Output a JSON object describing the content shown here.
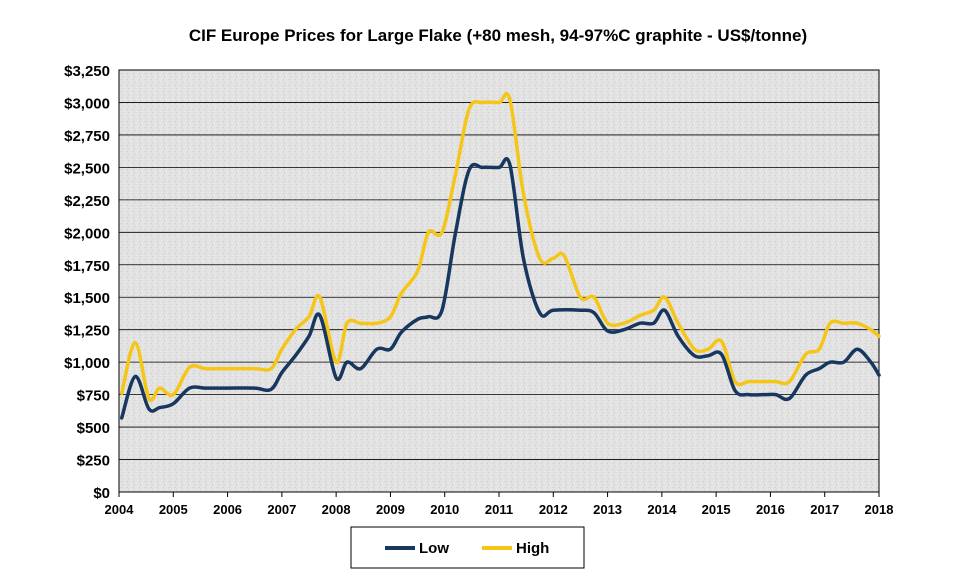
{
  "chart_data": {
    "type": "line",
    "title": "CIF Europe Prices for Large Flake (+80 mesh, 94-97%C graphite - US$/tonne)",
    "xlabel": "",
    "ylabel": "",
    "xlim": [
      2004,
      2018
    ],
    "ylim": [
      0,
      3250
    ],
    "y_ticks": [
      0,
      250,
      500,
      750,
      1000,
      1250,
      1500,
      1750,
      2000,
      2250,
      2500,
      2750,
      3000,
      3250
    ],
    "y_tick_labels": [
      "$0",
      "$250",
      "$500",
      "$750",
      "$1,000",
      "$1,250",
      "$1,500",
      "$1,750",
      "$2,000",
      "$2,250",
      "$2,500",
      "$2,750",
      "$3,000",
      "$3,250"
    ],
    "x_tick_labels": [
      "2004",
      "2005",
      "2006",
      "2007",
      "2008",
      "2009",
      "2010",
      "2011",
      "2012",
      "2013",
      "2014",
      "2015",
      "2016",
      "2017",
      "2018"
    ],
    "grid": true,
    "legend_position": "bottom",
    "series": [
      {
        "name": "Low",
        "color": "#17375e",
        "points": [
          [
            2004.05,
            570
          ],
          [
            2004.3,
            890
          ],
          [
            2004.55,
            640
          ],
          [
            2004.75,
            650
          ],
          [
            2005.0,
            680
          ],
          [
            2005.3,
            800
          ],
          [
            2005.6,
            800
          ],
          [
            2006.0,
            800
          ],
          [
            2006.5,
            800
          ],
          [
            2006.8,
            790
          ],
          [
            2007.0,
            920
          ],
          [
            2007.25,
            1050
          ],
          [
            2007.5,
            1200
          ],
          [
            2007.7,
            1360
          ],
          [
            2008.0,
            880
          ],
          [
            2008.2,
            1000
          ],
          [
            2008.45,
            950
          ],
          [
            2008.75,
            1100
          ],
          [
            2009.0,
            1100
          ],
          [
            2009.2,
            1230
          ],
          [
            2009.5,
            1330
          ],
          [
            2009.7,
            1350
          ],
          [
            2009.95,
            1400
          ],
          [
            2010.2,
            2000
          ],
          [
            2010.45,
            2480
          ],
          [
            2010.7,
            2500
          ],
          [
            2011.0,
            2500
          ],
          [
            2011.2,
            2520
          ],
          [
            2011.45,
            1800
          ],
          [
            2011.75,
            1380
          ],
          [
            2012.0,
            1400
          ],
          [
            2012.5,
            1400
          ],
          [
            2012.75,
            1380
          ],
          [
            2013.0,
            1240
          ],
          [
            2013.3,
            1250
          ],
          [
            2013.6,
            1300
          ],
          [
            2013.85,
            1300
          ],
          [
            2014.05,
            1400
          ],
          [
            2014.3,
            1200
          ],
          [
            2014.6,
            1050
          ],
          [
            2014.85,
            1050
          ],
          [
            2015.1,
            1060
          ],
          [
            2015.35,
            780
          ],
          [
            2015.6,
            750
          ],
          [
            2015.9,
            750
          ],
          [
            2016.1,
            750
          ],
          [
            2016.35,
            720
          ],
          [
            2016.65,
            900
          ],
          [
            2016.9,
            950
          ],
          [
            2017.1,
            1000
          ],
          [
            2017.35,
            1000
          ],
          [
            2017.6,
            1100
          ],
          [
            2017.85,
            1000
          ],
          [
            2018.0,
            900
          ]
        ]
      },
      {
        "name": "High",
        "color": "#f5c518",
        "points": [
          [
            2004.05,
            760
          ],
          [
            2004.3,
            1150
          ],
          [
            2004.55,
            720
          ],
          [
            2004.75,
            800
          ],
          [
            2005.0,
            750
          ],
          [
            2005.3,
            960
          ],
          [
            2005.6,
            950
          ],
          [
            2006.0,
            950
          ],
          [
            2006.5,
            950
          ],
          [
            2006.8,
            950
          ],
          [
            2007.0,
            1100
          ],
          [
            2007.25,
            1250
          ],
          [
            2007.5,
            1350
          ],
          [
            2007.7,
            1500
          ],
          [
            2008.0,
            1000
          ],
          [
            2008.2,
            1300
          ],
          [
            2008.45,
            1300
          ],
          [
            2008.75,
            1300
          ],
          [
            2009.0,
            1350
          ],
          [
            2009.2,
            1530
          ],
          [
            2009.5,
            1700
          ],
          [
            2009.7,
            2000
          ],
          [
            2009.95,
            2000
          ],
          [
            2010.2,
            2450
          ],
          [
            2010.45,
            2950
          ],
          [
            2010.7,
            3000
          ],
          [
            2011.0,
            3000
          ],
          [
            2011.2,
            3020
          ],
          [
            2011.45,
            2300
          ],
          [
            2011.75,
            1800
          ],
          [
            2012.0,
            1800
          ],
          [
            2012.2,
            1820
          ],
          [
            2012.5,
            1500
          ],
          [
            2012.75,
            1500
          ],
          [
            2013.0,
            1300
          ],
          [
            2013.3,
            1300
          ],
          [
            2013.6,
            1360
          ],
          [
            2013.85,
            1400
          ],
          [
            2014.05,
            1500
          ],
          [
            2014.3,
            1300
          ],
          [
            2014.6,
            1100
          ],
          [
            2014.85,
            1100
          ],
          [
            2015.1,
            1160
          ],
          [
            2015.35,
            850
          ],
          [
            2015.6,
            850
          ],
          [
            2015.9,
            850
          ],
          [
            2016.1,
            850
          ],
          [
            2016.35,
            850
          ],
          [
            2016.65,
            1060
          ],
          [
            2016.9,
            1100
          ],
          [
            2017.1,
            1300
          ],
          [
            2017.35,
            1300
          ],
          [
            2017.6,
            1300
          ],
          [
            2017.85,
            1250
          ],
          [
            2018.0,
            1200
          ]
        ]
      }
    ]
  }
}
